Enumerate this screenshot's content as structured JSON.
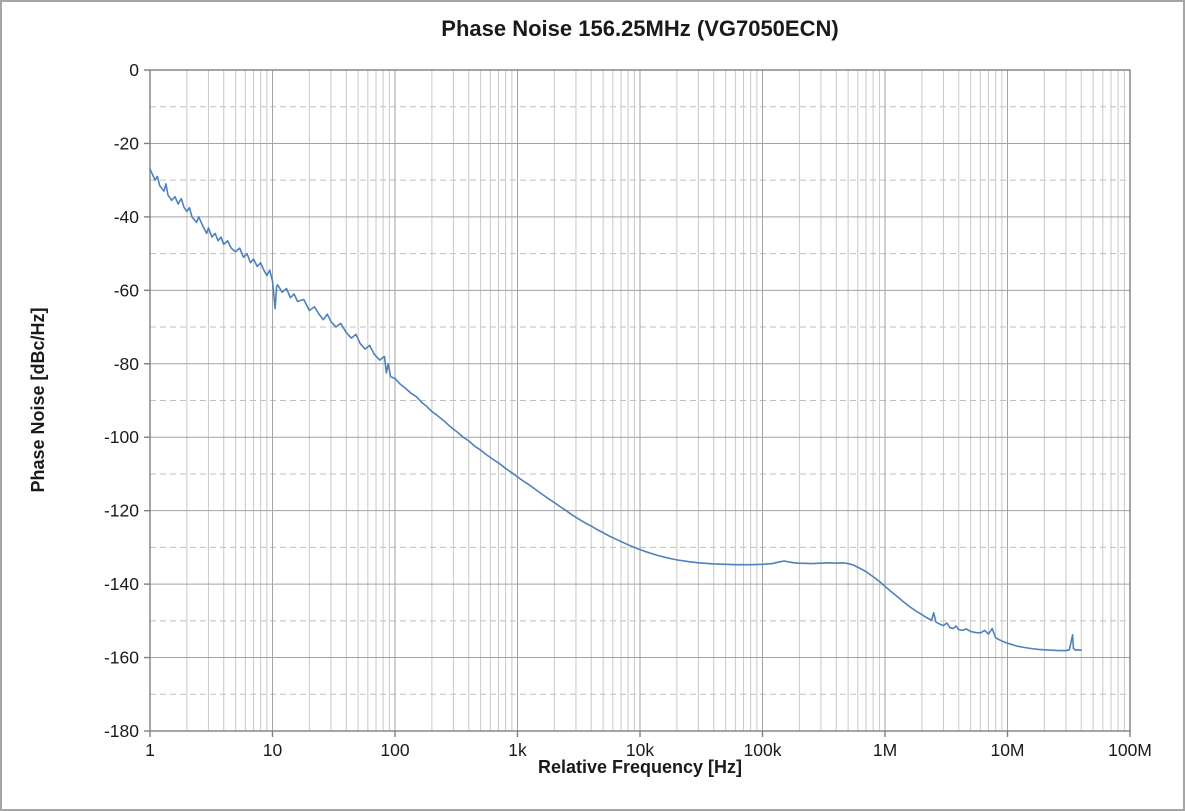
{
  "chart_data": {
    "type": "line",
    "title": "Phase Noise 156.25MHz (VG7050ECN)",
    "xlabel": "Relative Frequency [Hz]",
    "ylabel": "Phase Noise [dBc/Hz]",
    "x_scale": "log",
    "xlim": [
      1,
      100000000
    ],
    "ylim": [
      -180,
      0
    ],
    "grid": "major-solid, minor-horizontal-dashed, minor-vertical-solid",
    "legend": "none",
    "colors": {
      "line": "#4f81bd",
      "grid_major": "#a3a3a3",
      "grid_minor": "#c9c9c9",
      "grid_minor_dash": "#bfbfbf",
      "axis": "#7f7f7f",
      "text": "#1a1a1a"
    },
    "x_ticks": [
      {
        "v": 1,
        "label": "1"
      },
      {
        "v": 10,
        "label": "10"
      },
      {
        "v": 100,
        "label": "100"
      },
      {
        "v": 1000,
        "label": "1k"
      },
      {
        "v": 10000,
        "label": "10k"
      },
      {
        "v": 100000,
        "label": "100k"
      },
      {
        "v": 1000000,
        "label": "1M"
      },
      {
        "v": 10000000,
        "label": "10M"
      },
      {
        "v": 100000000,
        "label": "100M"
      }
    ],
    "y_ticks": [
      {
        "v": 0,
        "label": "0"
      },
      {
        "v": -20,
        "label": "-20"
      },
      {
        "v": -40,
        "label": "-40"
      },
      {
        "v": -60,
        "label": "-60"
      },
      {
        "v": -80,
        "label": "-80"
      },
      {
        "v": -100,
        "label": "-100"
      },
      {
        "v": -120,
        "label": "-120"
      },
      {
        "v": -140,
        "label": "-140"
      },
      {
        "v": -160,
        "label": "-160"
      },
      {
        "v": -180,
        "label": "-180"
      }
    ],
    "points": [
      [
        1,
        -27
      ],
      [
        1.05,
        -28.5
      ],
      [
        1.1,
        -30
      ],
      [
        1.15,
        -29
      ],
      [
        1.2,
        -31.5
      ],
      [
        1.3,
        -33
      ],
      [
        1.35,
        -31
      ],
      [
        1.4,
        -34
      ],
      [
        1.5,
        -35.5
      ],
      [
        1.6,
        -34.5
      ],
      [
        1.7,
        -36.5
      ],
      [
        1.8,
        -35
      ],
      [
        1.9,
        -37.5
      ],
      [
        2,
        -38.5
      ],
      [
        2.1,
        -37.5
      ],
      [
        2.2,
        -40
      ],
      [
        2.4,
        -41.5
      ],
      [
        2.5,
        -40
      ],
      [
        2.7,
        -42.5
      ],
      [
        2.9,
        -44.5
      ],
      [
        3,
        -43
      ],
      [
        3.2,
        -45.5
      ],
      [
        3.4,
        -44.5
      ],
      [
        3.6,
        -46.5
      ],
      [
        3.8,
        -45.5
      ],
      [
        4,
        -47.5
      ],
      [
        4.3,
        -46.5
      ],
      [
        4.6,
        -48.5
      ],
      [
        5,
        -49.5
      ],
      [
        5.4,
        -48.5
      ],
      [
        5.8,
        -51
      ],
      [
        6.2,
        -50
      ],
      [
        6.6,
        -52.5
      ],
      [
        7,
        -51.5
      ],
      [
        7.5,
        -53.5
      ],
      [
        8,
        -52.5
      ],
      [
        8.5,
        -54.5
      ],
      [
        9,
        -56
      ],
      [
        9.5,
        -54.5
      ],
      [
        10,
        -57.5
      ],
      [
        10.5,
        -65
      ],
      [
        10.8,
        -59
      ],
      [
        11,
        -58.5
      ],
      [
        12,
        -60.5
      ],
      [
        13,
        -59.5
      ],
      [
        14,
        -62
      ],
      [
        15,
        -61
      ],
      [
        16,
        -63
      ],
      [
        18,
        -62.5
      ],
      [
        20,
        -65.5
      ],
      [
        22,
        -64.5
      ],
      [
        24,
        -66.5
      ],
      [
        26,
        -68
      ],
      [
        28,
        -66.5
      ],
      [
        30,
        -68.5
      ],
      [
        33,
        -70
      ],
      [
        36,
        -69
      ],
      [
        40,
        -71.5
      ],
      [
        44,
        -73
      ],
      [
        48,
        -72
      ],
      [
        52,
        -74.5
      ],
      [
        57,
        -76
      ],
      [
        62,
        -75
      ],
      [
        68,
        -77.5
      ],
      [
        75,
        -79
      ],
      [
        82,
        -78
      ],
      [
        85,
        -82.5
      ],
      [
        88,
        -80
      ],
      [
        92,
        -83.5
      ],
      [
        100,
        -84
      ],
      [
        110,
        -85.5
      ],
      [
        120,
        -86.5
      ],
      [
        135,
        -88
      ],
      [
        150,
        -89
      ],
      [
        165,
        -90.5
      ],
      [
        180,
        -91.5
      ],
      [
        200,
        -93
      ],
      [
        220,
        -94
      ],
      [
        250,
        -95.5
      ],
      [
        280,
        -97
      ],
      [
        320,
        -98.5
      ],
      [
        360,
        -100
      ],
      [
        400,
        -101
      ],
      [
        450,
        -102.5
      ],
      [
        500,
        -103.5
      ],
      [
        560,
        -104.8
      ],
      [
        630,
        -106
      ],
      [
        700,
        -107
      ],
      [
        800,
        -108.5
      ],
      [
        900,
        -109.7
      ],
      [
        1000,
        -110.8
      ],
      [
        1100,
        -111.8
      ],
      [
        1250,
        -113
      ],
      [
        1400,
        -114.2
      ],
      [
        1600,
        -115.6
      ],
      [
        1800,
        -116.8
      ],
      [
        2000,
        -117.8
      ],
      [
        2250,
        -119
      ],
      [
        2500,
        -120
      ],
      [
        2800,
        -121.2
      ],
      [
        3200,
        -122.4
      ],
      [
        3600,
        -123.4
      ],
      [
        4000,
        -124.2
      ],
      [
        4500,
        -125.2
      ],
      [
        5000,
        -126
      ],
      [
        5600,
        -126.9
      ],
      [
        6300,
        -127.7
      ],
      [
        7000,
        -128.4
      ],
      [
        8000,
        -129.3
      ],
      [
        9000,
        -130
      ],
      [
        10000,
        -130.6
      ],
      [
        11000,
        -131.1
      ],
      [
        12500,
        -131.7
      ],
      [
        14000,
        -132.2
      ],
      [
        16000,
        -132.7
      ],
      [
        18000,
        -133.1
      ],
      [
        20000,
        -133.4
      ],
      [
        25000,
        -133.9
      ],
      [
        30000,
        -134.2
      ],
      [
        40000,
        -134.5
      ],
      [
        50000,
        -134.6
      ],
      [
        60000,
        -134.7
      ],
      [
        80000,
        -134.7
      ],
      [
        100000,
        -134.6
      ],
      [
        120000,
        -134.4
      ],
      [
        140000,
        -133.9
      ],
      [
        150000,
        -133.7
      ],
      [
        160000,
        -133.9
      ],
      [
        180000,
        -134.2
      ],
      [
        200000,
        -134.3
      ],
      [
        250000,
        -134.4
      ],
      [
        300000,
        -134.3
      ],
      [
        350000,
        -134.2
      ],
      [
        400000,
        -134.3
      ],
      [
        450000,
        -134.2
      ],
      [
        500000,
        -134.4
      ],
      [
        550000,
        -134.8
      ],
      [
        600000,
        -135.4
      ],
      [
        700000,
        -136.6
      ],
      [
        800000,
        -138
      ],
      [
        900000,
        -139.3
      ],
      [
        1000000,
        -140.6
      ],
      [
        1100000,
        -141.8
      ],
      [
        1250000,
        -143.3
      ],
      [
        1400000,
        -144.7
      ],
      [
        1600000,
        -146.2
      ],
      [
        1800000,
        -147.4
      ],
      [
        2000000,
        -148.3
      ],
      [
        2200000,
        -149.2
      ],
      [
        2400000,
        -149.8
      ],
      [
        2500000,
        -147.8
      ],
      [
        2600000,
        -150.3
      ],
      [
        2800000,
        -150.9
      ],
      [
        3000000,
        -151.3
      ],
      [
        3200000,
        -150.6
      ],
      [
        3400000,
        -151.9
      ],
      [
        3600000,
        -152.1
      ],
      [
        3800000,
        -151.4
      ],
      [
        4000000,
        -152.4
      ],
      [
        4300000,
        -152.6
      ],
      [
        4600000,
        -152.2
      ],
      [
        5000000,
        -152.9
      ],
      [
        5500000,
        -153.2
      ],
      [
        6000000,
        -153.3
      ],
      [
        6500000,
        -152.6
      ],
      [
        7000000,
        -153.6
      ],
      [
        7500000,
        -152.1
      ],
      [
        8000000,
        -154.6
      ],
      [
        8500000,
        -155.1
      ],
      [
        9000000,
        -155.5
      ],
      [
        10000000,
        -156.1
      ],
      [
        11000000,
        -156.5
      ],
      [
        12000000,
        -156.9
      ],
      [
        14000000,
        -157.3
      ],
      [
        16000000,
        -157.6
      ],
      [
        18000000,
        -157.8
      ],
      [
        20000000,
        -157.9
      ],
      [
        23000000,
        -158
      ],
      [
        26000000,
        -158.1
      ],
      [
        30000000,
        -158.1
      ],
      [
        32000000,
        -157.9
      ],
      [
        34000000,
        -153.8
      ],
      [
        34500000,
        -157.5
      ],
      [
        36000000,
        -158
      ],
      [
        38000000,
        -157.9
      ],
      [
        40000000,
        -158
      ]
    ]
  }
}
